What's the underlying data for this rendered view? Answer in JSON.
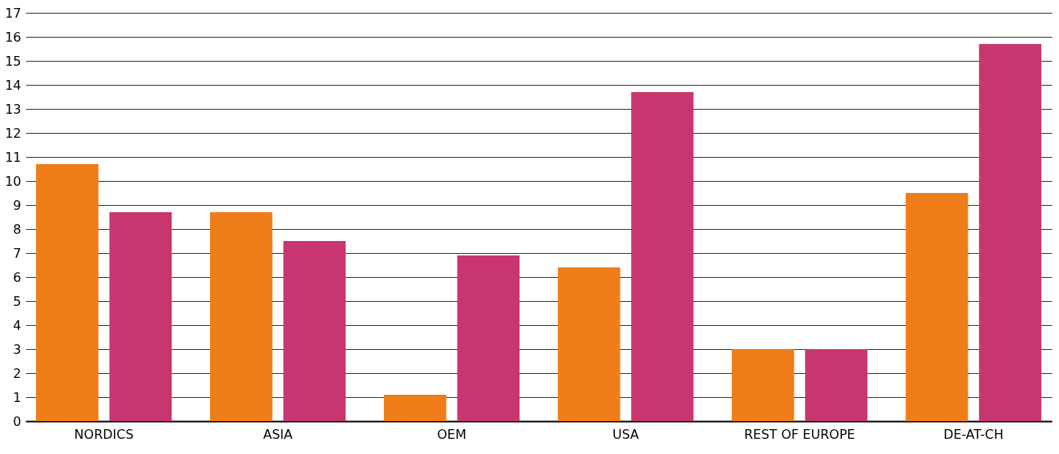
{
  "chart_data": {
    "type": "bar",
    "categories": [
      "NORDICS",
      "ASIA",
      "OEM",
      "USA",
      "REST OF EUROPE",
      "DE-AT-CH"
    ],
    "series": [
      {
        "color": "#ee7d1a",
        "values": [
          10.7,
          8.7,
          1.1,
          6.4,
          3.0,
          9.5
        ]
      },
      {
        "color": "#c8366f",
        "values": [
          8.7,
          7.5,
          6.9,
          13.7,
          3.0,
          15.7
        ]
      }
    ],
    "ylim": [
      0,
      17
    ],
    "yticks": [
      0,
      1,
      2,
      3,
      4,
      5,
      6,
      7,
      8,
      9,
      10,
      11,
      12,
      13,
      14,
      15,
      16,
      17
    ],
    "grid": "y",
    "legend": false
  }
}
